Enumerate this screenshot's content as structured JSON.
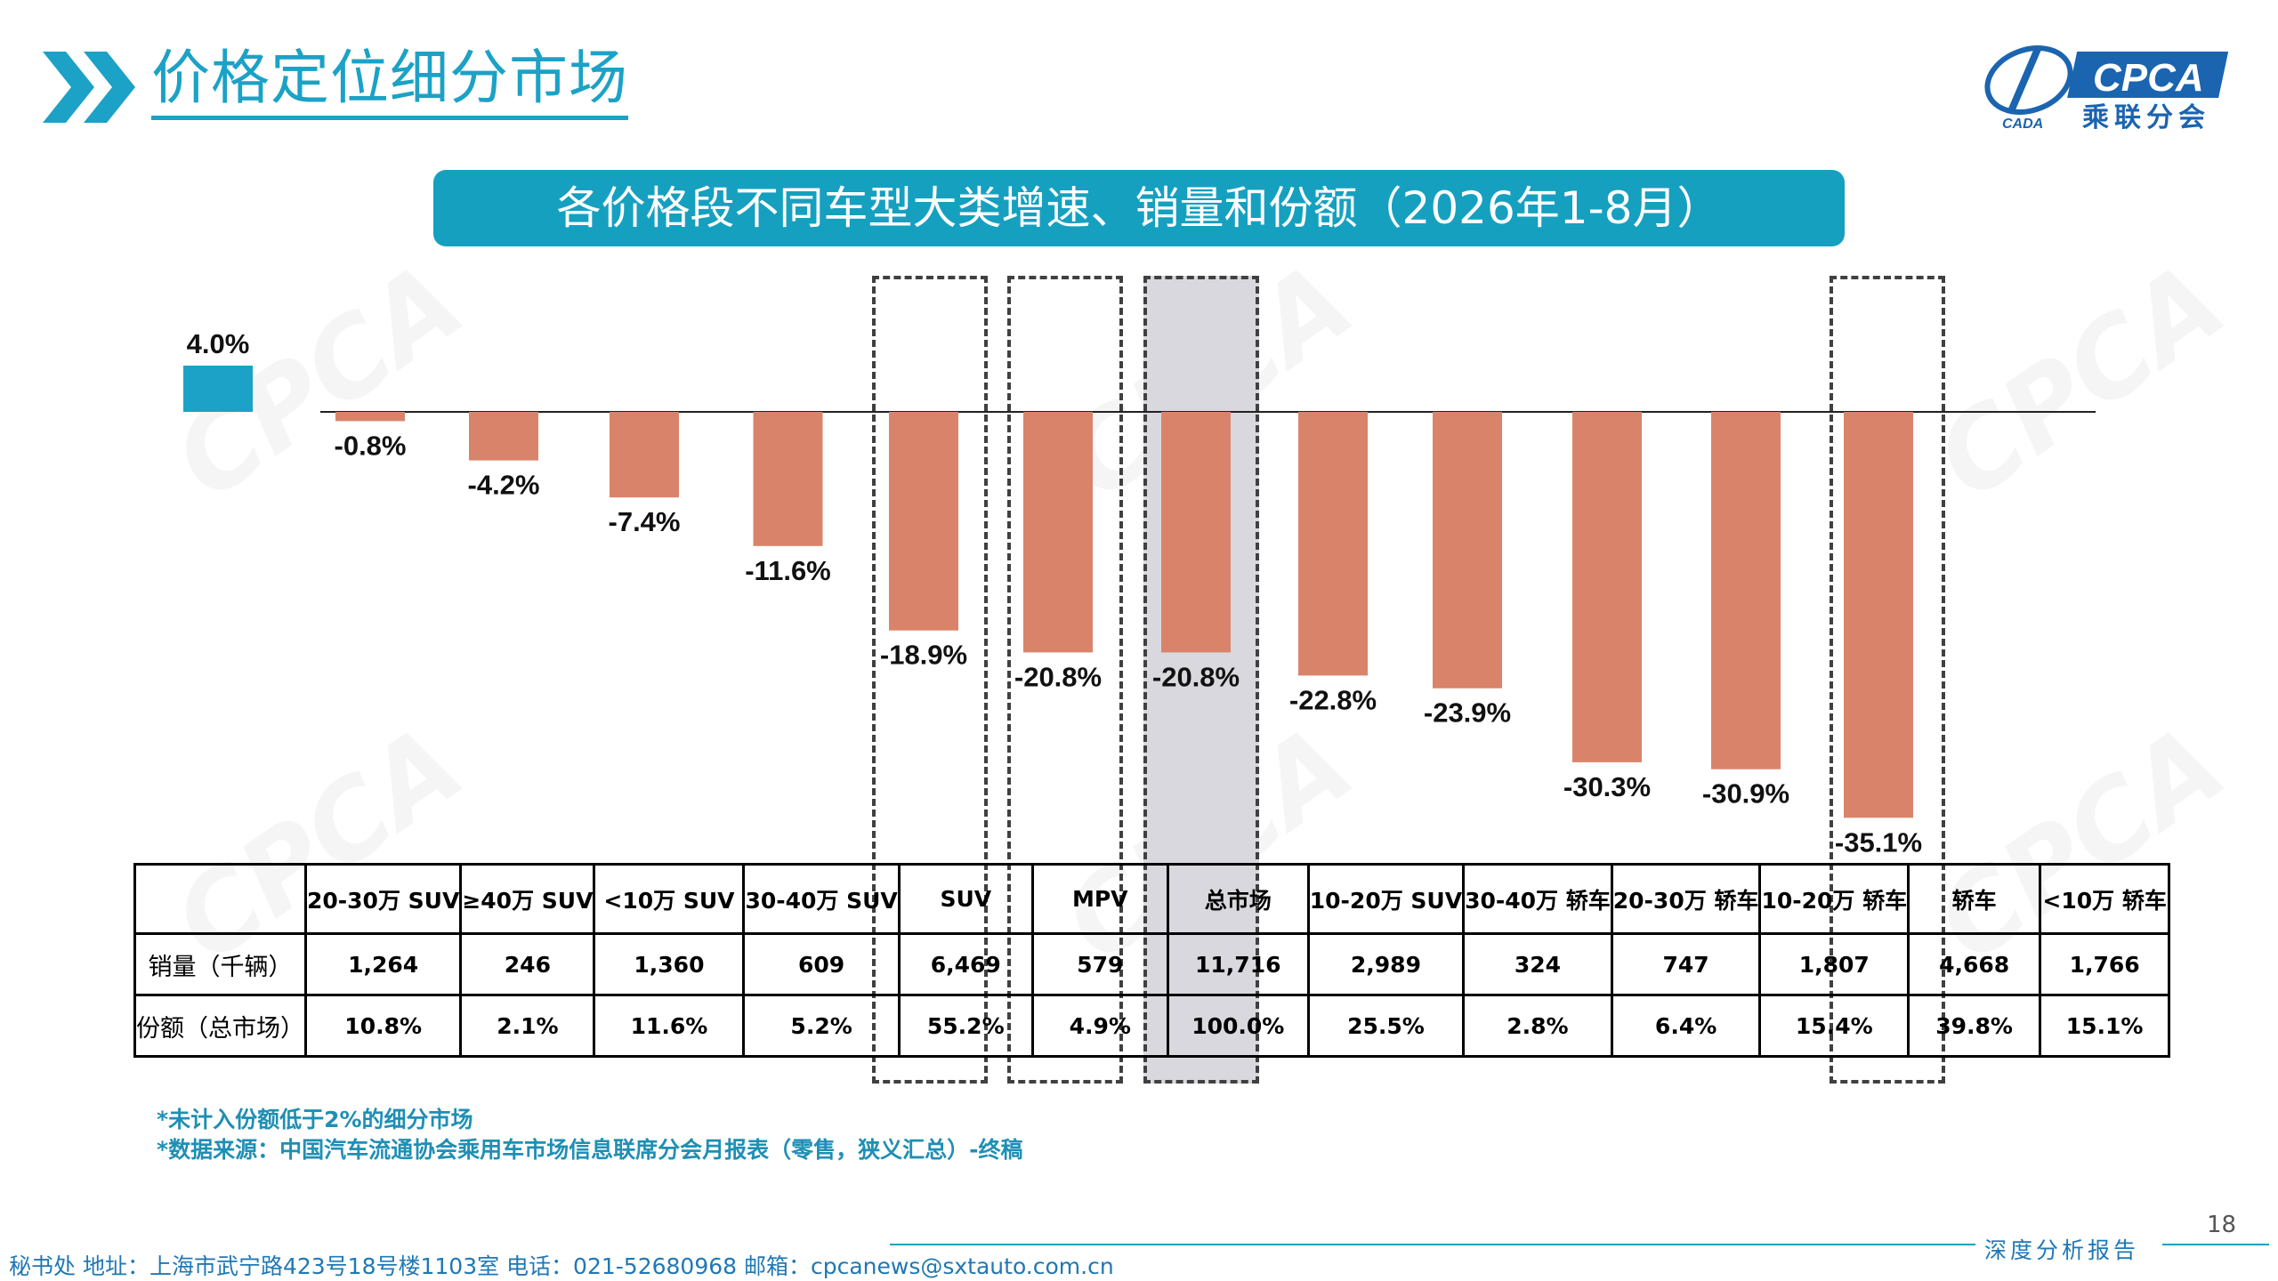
{
  "header": {
    "title": "价格定位细分市场",
    "logo_text": "CPCA",
    "logo_sub": "乘联分会",
    "logo_small": "CADA"
  },
  "banner": {
    "text": "各价格段不同车型大类增速、销量和份额（2026年1-8月）"
  },
  "colors": {
    "accent": "#16a0c0",
    "positive_bar": "#1ba2c6",
    "negative_bar": "#d9846a",
    "highlight_bg": "#d9d8de"
  },
  "chart_data": {
    "type": "bar",
    "categories": [
      "20-30万 SUV",
      "≥40万 SUV",
      "<10万 SUV",
      "30-40万 SUV",
      "SUV",
      "MPV",
      "总市场",
      "10-20万 SUV",
      "30-40万 轿车",
      "20-30万 轿车",
      "10-20万 轿车",
      "轿车",
      "<10万 轿车"
    ],
    "values": [
      4.0,
      -0.8,
      -4.2,
      -7.4,
      -11.6,
      -18.9,
      -20.8,
      -20.8,
      -22.8,
      -23.9,
      -30.3,
      -30.9,
      -35.1
    ],
    "value_labels": [
      "4.0%",
      "-0.8%",
      "-4.2%",
      "-7.4%",
      "-11.6%",
      "-18.9%",
      "-20.8%",
      "-20.8%",
      "-22.8%",
      "-23.9%",
      "-30.3%",
      "-30.9%",
      "-35.1%"
    ],
    "highlighted": [
      "SUV",
      "MPV",
      "轿车"
    ],
    "shaded": [
      "总市场"
    ],
    "ylim": [
      -36,
      5
    ],
    "grid": false,
    "legend": "none"
  },
  "table": {
    "rows": [
      {
        "label": "销量（千辆）",
        "values": [
          "1,264",
          "246",
          "1,360",
          "609",
          "6,469",
          "579",
          "11,716",
          "2,989",
          "324",
          "747",
          "1,807",
          "4,668",
          "1,766"
        ]
      },
      {
        "label": "份额（总市场）",
        "values": [
          "10.8%",
          "2.1%",
          "11.6%",
          "5.2%",
          "55.2%",
          "4.9%",
          "100.0%",
          "25.5%",
          "2.8%",
          "6.4%",
          "15.4%",
          "39.8%",
          "15.1%"
        ]
      }
    ]
  },
  "notes": [
    "*未计入份额低于2%的细分市场",
    "*数据来源：中国汽车流通协会乘用车市场信息联席分会月报表（零售，狭义汇总）-终稿"
  ],
  "footer": {
    "address": "秘书处   地址：上海市武宁路423号18号楼1103室   电话：021-52680968    邮箱：cpcanews@sxtauto.com.cn",
    "tag": "深度分析报告",
    "page": "18"
  }
}
